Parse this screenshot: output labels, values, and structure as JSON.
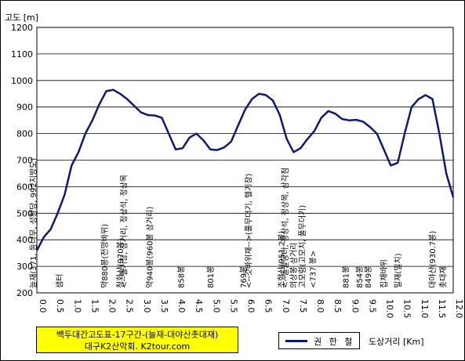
{
  "chart_data": {
    "type": "line",
    "ylabel": "고도 [m]",
    "xlabel": "도상거리 [Km]",
    "xlim": [
      0,
      12
    ],
    "ylim": [
      200,
      1200
    ],
    "x_ticks": [
      "0.0",
      "0.5",
      "1.0",
      "1.5",
      "2.0",
      "2.5",
      "3.0",
      "3.5",
      "4.0",
      "4.5",
      "5.0",
      "5.5",
      "6.0",
      "6.5",
      "7.0",
      "7.5",
      "8.0",
      "8.5",
      "9.0",
      "9.5",
      "10.0",
      "10.5",
      "11.0",
      "11.5",
      "12.0"
    ],
    "y_ticks": [
      "200",
      "300",
      "400",
      "500",
      "600",
      "700",
      "800",
      "900",
      "1000",
      "1100",
      "1200"
    ],
    "grid": true,
    "legend_position": "bottom",
    "series": [
      {
        "name": "권 한 철",
        "color": "#0a1a7a",
        "points": [
          [
            0.0,
            360
          ],
          [
            0.2,
            410
          ],
          [
            0.4,
            440
          ],
          [
            0.6,
            500
          ],
          [
            0.8,
            570
          ],
          [
            1.0,
            680
          ],
          [
            1.2,
            730
          ],
          [
            1.4,
            800
          ],
          [
            1.6,
            850
          ],
          [
            1.8,
            910
          ],
          [
            2.0,
            960
          ],
          [
            2.2,
            965
          ],
          [
            2.4,
            950
          ],
          [
            2.6,
            930
          ],
          [
            2.8,
            905
          ],
          [
            3.0,
            880
          ],
          [
            3.2,
            870
          ],
          [
            3.4,
            868
          ],
          [
            3.6,
            860
          ],
          [
            3.8,
            800
          ],
          [
            4.0,
            740
          ],
          [
            4.2,
            745
          ],
          [
            4.4,
            785
          ],
          [
            4.6,
            800
          ],
          [
            4.8,
            775
          ],
          [
            5.0,
            740
          ],
          [
            5.2,
            738
          ],
          [
            5.4,
            748
          ],
          [
            5.6,
            770
          ],
          [
            5.8,
            830
          ],
          [
            6.0,
            890
          ],
          [
            6.2,
            930
          ],
          [
            6.4,
            950
          ],
          [
            6.6,
            945
          ],
          [
            6.8,
            925
          ],
          [
            7.0,
            870
          ],
          [
            7.2,
            780
          ],
          [
            7.4,
            730
          ],
          [
            7.6,
            745
          ],
          [
            7.8,
            780
          ],
          [
            8.0,
            810
          ],
          [
            8.2,
            860
          ],
          [
            8.4,
            885
          ],
          [
            8.6,
            875
          ],
          [
            8.8,
            855
          ],
          [
            9.0,
            850
          ],
          [
            9.2,
            852
          ],
          [
            9.4,
            845
          ],
          [
            9.6,
            825
          ],
          [
            9.8,
            800
          ],
          [
            10.0,
            740
          ],
          [
            10.2,
            680
          ],
          [
            10.4,
            690
          ],
          [
            10.6,
            800
          ],
          [
            10.8,
            900
          ],
          [
            11.0,
            930
          ],
          [
            11.2,
            945
          ],
          [
            11.4,
            930
          ],
          [
            11.6,
            800
          ],
          [
            11.8,
            650
          ],
          [
            12.0,
            560
          ]
        ]
      }
    ],
    "annotations": [
      {
        "x": 0.05,
        "text": "늘재(371, 등나무, 성황당, 992지방도)"
      },
      {
        "x": 0.8,
        "text": "샘터"
      },
      {
        "x": 2.1,
        "text": "약880봉(전망바위)"
      },
      {
        "x": 2.55,
        "text": "청화산(970봉)"
      },
      {
        "x": 2.65,
        "text": "<--헬기장, 삼거리, 정상석, 정상목"
      },
      {
        "x": 3.4,
        "text": "약940봉(960봉 삼거리)"
      },
      {
        "x": 4.3,
        "text": "858봉"
      },
      {
        "x": 5.15,
        "text": "801봉"
      },
      {
        "x": 6.1,
        "text": "769봉"
      },
      {
        "x": 6.25,
        "text": "<--갓바위재-->(풀무더기, 헬기장)"
      },
      {
        "x": 7.2,
        "text": "조항산(951.2봉)"
      },
      {
        "x": 7.3,
        "text": "<--돌발공터, 정상석, 정상목, 삼각점"
      },
      {
        "x": 7.55,
        "text": "의상봉 삼거리"
      },
      {
        "x": 7.8,
        "text": "고모령(고모치, 풀무더기)"
      },
      {
        "x": 8.1,
        "text": "<737 봉>"
      },
      {
        "x": 9.05,
        "text": "881봉"
      },
      {
        "x": 9.45,
        "text": "854봉"
      },
      {
        "x": 9.7,
        "text": "849봉"
      },
      {
        "x": 10.15,
        "text": "집채바위"
      },
      {
        "x": 10.55,
        "text": "밀재(밀치)"
      },
      {
        "x": 11.55,
        "text": "대야산(930.7봉)"
      },
      {
        "x": 11.85,
        "text": "촛대재"
      }
    ]
  },
  "credit": {
    "line1": "백두대간고도표-17구간-(늘재-대야산촛대재)",
    "line2": "대구K2산악회. K2tour.com"
  }
}
